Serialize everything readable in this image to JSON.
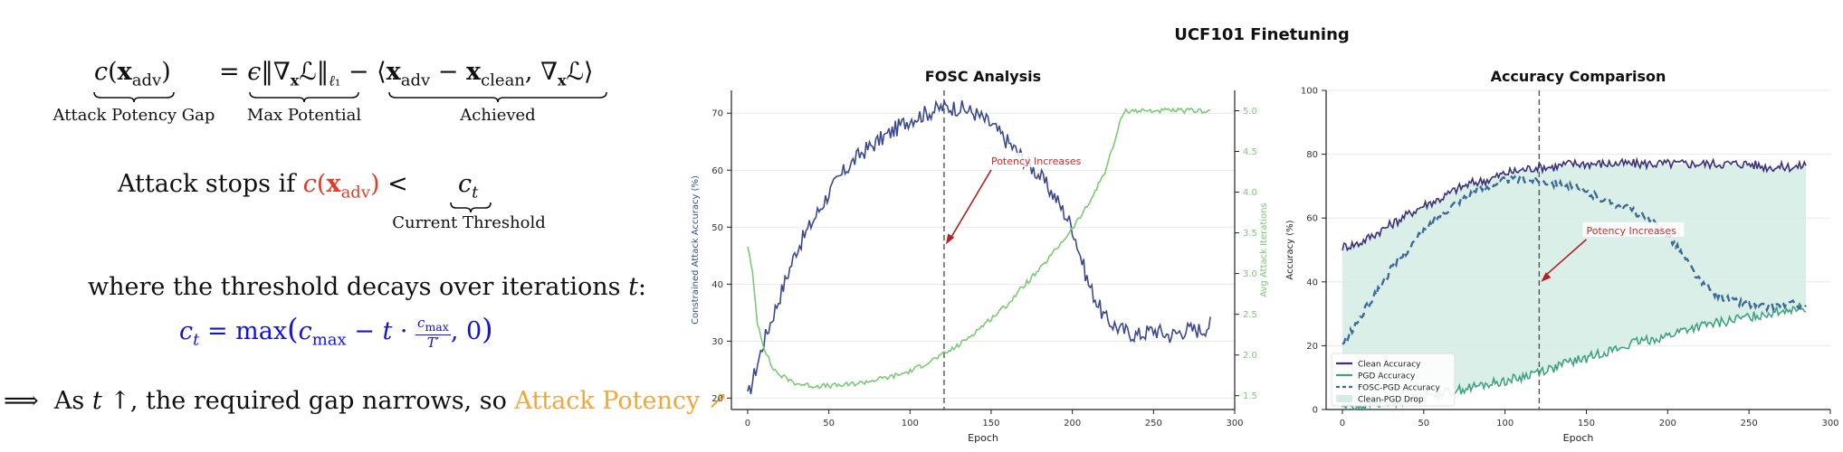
{
  "formula": {
    "lhs": "c(x_adv)",
    "lhs_label": "Attack Potency Gap",
    "term1_label": "Max Potential",
    "term2_label": "Achieved",
    "stop_text": "Attack stops if",
    "stop_expr": "c(x_adv)",
    "stop_lt": "<",
    "threshold": "c_t",
    "threshold_label": "Current Threshold",
    "where_text": "where the threshold decays over iterations t:",
    "decay": "c_t = max(c_max − t · c_max/T′, 0)",
    "implies_text": "⟹  As t ↑, the required gap narrows, so",
    "implies_highlight": "Attack Potency ↗"
  },
  "colors": {
    "dark_blue": "#3b4a8e",
    "green": "#7ccb74",
    "teal_green": "#3fa37f",
    "fill": "#d4ece3",
    "red_arrow": "#b22222",
    "fosc_pgd": "#3e6a9a",
    "clean": "#3d2f7a"
  },
  "suptitle": "UCF101 Finetuning",
  "chart_data": [
    {
      "type": "line",
      "title": "FOSC Analysis",
      "xlabel": "Epoch",
      "ylabel": "Constrained Attack Accuracy (%)",
      "y2label": "Avg Attack Iterations",
      "xlim": [
        -10,
        300
      ],
      "ylim": [
        18,
        74
      ],
      "y2lim": [
        1.33,
        5.25
      ],
      "xticks": [
        "0",
        "50",
        "100",
        "150",
        "200",
        "250",
        "300"
      ],
      "yticks": [
        "20",
        "30",
        "40",
        "50",
        "60",
        "70"
      ],
      "y2ticks": [
        "1.5",
        "2.0",
        "2.5",
        "3.0",
        "3.5",
        "4.0",
        "4.5",
        "5.0"
      ],
      "vline_x": 121,
      "annotation": {
        "text": "Potency Increases",
        "point": [
          121,
          47
        ],
        "label_at": [
          150,
          61
        ]
      },
      "series": [
        {
          "axis": "left",
          "color": "#3b4a8e",
          "x": [
            0,
            10,
            20,
            30,
            40,
            50,
            60,
            70,
            80,
            90,
            100,
            110,
            120,
            130,
            140,
            150,
            160,
            170,
            180,
            190,
            200,
            210,
            220,
            230,
            240,
            250,
            260,
            270,
            280,
            285
          ],
          "values": [
            20,
            30,
            38,
            46,
            51,
            56,
            60,
            63,
            65,
            67,
            69,
            70,
            71,
            71,
            70,
            68,
            65,
            62,
            59,
            55,
            50,
            40,
            34,
            32,
            31,
            32,
            31,
            32,
            32,
            33
          ]
        },
        {
          "axis": "right",
          "color": "#7ccb74",
          "x": [
            0,
            3,
            6,
            10,
            15,
            20,
            30,
            40,
            50,
            60,
            70,
            80,
            90,
            100,
            110,
            120,
            130,
            140,
            150,
            160,
            170,
            180,
            190,
            200,
            210,
            220,
            225,
            230,
            232,
            240,
            250,
            260,
            270,
            280,
            285
          ],
          "values": [
            3.35,
            3.0,
            2.4,
            2.1,
            1.85,
            1.75,
            1.65,
            1.62,
            1.62,
            1.63,
            1.66,
            1.7,
            1.74,
            1.8,
            1.9,
            2.0,
            2.12,
            2.28,
            2.45,
            2.62,
            2.85,
            3.05,
            3.3,
            3.55,
            3.85,
            4.25,
            4.55,
            4.9,
            5.0,
            5.0,
            5.0,
            5.0,
            5.0,
            5.0,
            5.0
          ]
        }
      ]
    },
    {
      "type": "line",
      "title": "Accuracy Comparison",
      "xlabel": "Epoch",
      "ylabel": "Accuracy (%)",
      "xlim": [
        -10,
        300
      ],
      "ylim": [
        0,
        100
      ],
      "xticks": [
        "0",
        "50",
        "100",
        "150",
        "200",
        "250",
        "300"
      ],
      "yticks": [
        "0",
        "20",
        "40",
        "60",
        "80",
        "100"
      ],
      "vline_x": 121,
      "annotation": {
        "text": "Potency Increases",
        "point": [
          121,
          40
        ],
        "label_at": [
          150,
          55
        ]
      },
      "legend_position": "lower-left",
      "series": [
        {
          "name": "Clean Accuracy",
          "color": "#3d2f7a",
          "style": "solid",
          "x": [
            0,
            10,
            20,
            30,
            40,
            50,
            60,
            70,
            80,
            90,
            100,
            110,
            120,
            130,
            140,
            150,
            160,
            170,
            180,
            190,
            200,
            210,
            220,
            230,
            240,
            250,
            260,
            270,
            280,
            285
          ],
          "values": [
            51,
            52,
            55,
            58,
            61,
            64,
            66,
            69,
            71,
            72,
            74,
            75,
            76,
            76,
            77,
            77,
            77,
            77,
            77,
            77,
            77,
            77,
            77,
            77,
            77,
            77,
            76,
            76,
            76,
            77
          ]
        },
        {
          "name": "PGD Accuracy",
          "color": "#3fa37f",
          "style": "solid",
          "x": [
            0,
            10,
            20,
            30,
            40,
            50,
            60,
            70,
            80,
            90,
            100,
            110,
            120,
            130,
            140,
            150,
            160,
            170,
            180,
            190,
            200,
            210,
            220,
            230,
            240,
            250,
            260,
            270,
            280,
            285
          ],
          "values": [
            1,
            1,
            2,
            2,
            3,
            4,
            5,
            6,
            7,
            8,
            9,
            10,
            12,
            13,
            15,
            16,
            18,
            19,
            21,
            22,
            23,
            25,
            26,
            27,
            28,
            29,
            30,
            31,
            32,
            32
          ]
        },
        {
          "name": "FOSC-PGD Accuracy",
          "color": "#3e6a9a",
          "style": "dashed",
          "x": [
            0,
            10,
            20,
            30,
            40,
            50,
            60,
            70,
            80,
            90,
            100,
            110,
            120,
            130,
            140,
            150,
            160,
            170,
            180,
            190,
            200,
            210,
            220,
            230,
            240,
            250,
            260,
            270,
            280,
            285
          ],
          "values": [
            20,
            28,
            36,
            44,
            50,
            56,
            61,
            65,
            68,
            70,
            72,
            72,
            72,
            71,
            70,
            68,
            66,
            64,
            62,
            59,
            55,
            48,
            40,
            36,
            34,
            33,
            32,
            33,
            33,
            32
          ]
        }
      ],
      "fill_between": {
        "name": "Clean-PGD Drop",
        "upper": "Clean Accuracy",
        "lower": "PGD Accuracy",
        "color": "#d4ece3"
      }
    }
  ]
}
